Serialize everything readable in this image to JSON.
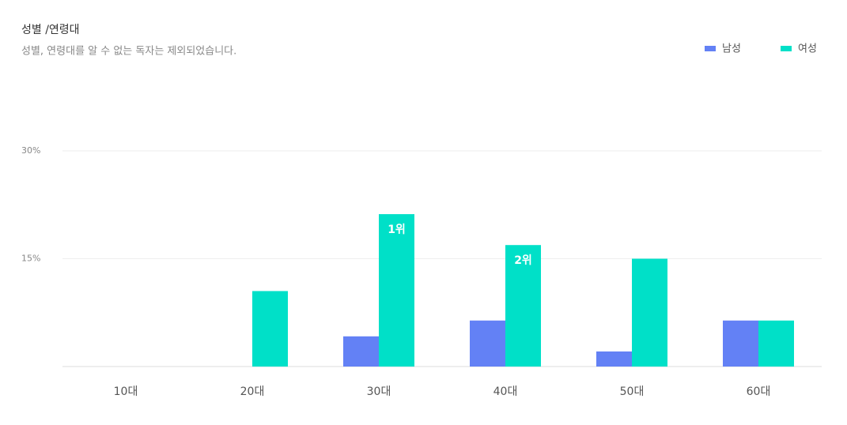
{
  "chart_data": {
    "type": "bar",
    "title": "성별 /연령대",
    "subtitle": "성별, 연령대를 알 수 없는 독자는 제외되었습니다.",
    "categories": [
      "10대",
      "20대",
      "30대",
      "40대",
      "50대",
      "60대"
    ],
    "series": [
      {
        "name": "남성",
        "color": "#6381f5",
        "values": [
          0,
          0,
          4.2,
          6.4,
          2.1,
          6.4
        ]
      },
      {
        "name": "여성",
        "color": "#00e0c8",
        "values": [
          0,
          10.5,
          21.2,
          16.9,
          15.0,
          6.4
        ],
        "rank_labels": [
          null,
          null,
          "1위",
          "2위",
          null,
          null
        ]
      }
    ],
    "ylim": [
      0,
      30
    ],
    "yticks": [
      {
        "value": 15,
        "label": "15%"
      },
      {
        "value": 30,
        "label": "30%"
      }
    ],
    "grid": true,
    "legend": "top-right"
  }
}
